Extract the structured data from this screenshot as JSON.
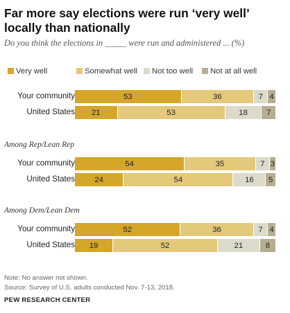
{
  "title": "Far more say elections were run ‘very well’ locally than nationally",
  "subtitle": "Do you think the elections in _____ were run and administered ... (%)",
  "legend": [
    {
      "label": "Very well",
      "color": "#d4a62a"
    },
    {
      "label": "Somewhat well",
      "color": "#e4c97b"
    },
    {
      "label": "Not too well",
      "color": "#dcdacb"
    },
    {
      "label": "Not at all well",
      "color": "#b7ad93"
    }
  ],
  "chart_data": {
    "type": "bar",
    "orientation": "horizontal",
    "stacked": true,
    "series_names": [
      "Very well",
      "Somewhat well",
      "Not too well",
      "Not at all well"
    ],
    "groups": [
      {
        "label": "",
        "rows": [
          {
            "category": "Your community",
            "values": [
              53,
              36,
              7,
              4
            ]
          },
          {
            "category": "United States",
            "values": [
              21,
              53,
              18,
              7
            ]
          }
        ]
      },
      {
        "label": "Among Rep/Lean Rep",
        "rows": [
          {
            "category": "Your community",
            "values": [
              54,
              35,
              7,
              3
            ]
          },
          {
            "category": "United States",
            "values": [
              24,
              54,
              16,
              5
            ]
          }
        ]
      },
      {
        "label": "Among Dem/Lean Dem",
        "rows": [
          {
            "category": "Your community",
            "values": [
              52,
              36,
              7,
              4
            ]
          },
          {
            "category": "United States",
            "values": [
              19,
              52,
              21,
              8
            ]
          }
        ]
      }
    ]
  },
  "notes": {
    "note": "Note: No answer not shown.",
    "source": "Source: Survey of U.S. adults conducted Nov. 7-13, 2018.",
    "org": "PEW RESEARCH CENTER"
  }
}
